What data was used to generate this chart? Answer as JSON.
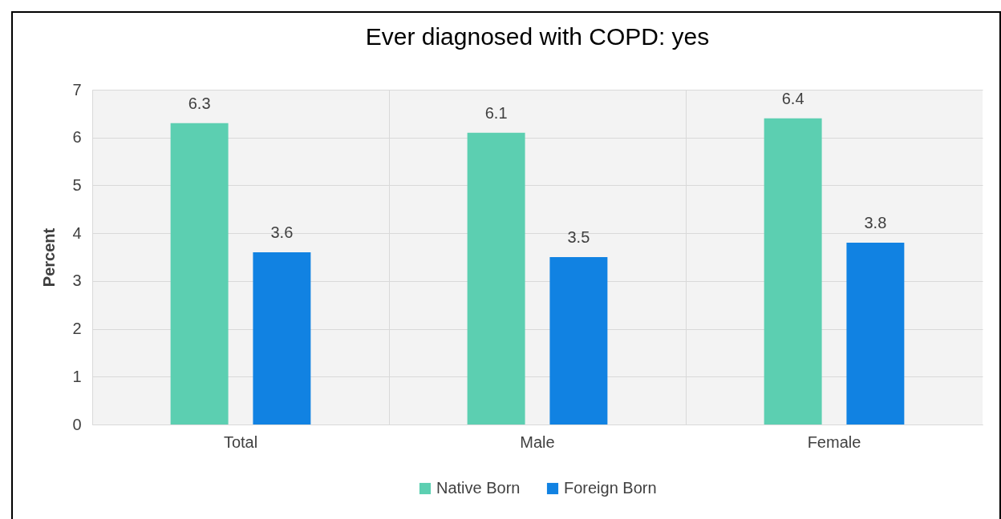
{
  "chart_data": {
    "type": "bar",
    "title": "Ever diagnosed with COPD: yes",
    "ylabel": "Percent",
    "categories": [
      "Total",
      "Male",
      "Female"
    ],
    "series": [
      {
        "name": "Native Born",
        "color": "#5ccfb1",
        "values": [
          6.3,
          6.1,
          6.4
        ]
      },
      {
        "name": "Foreign Born",
        "color": "#1182e2",
        "values": [
          3.6,
          3.5,
          3.8
        ]
      }
    ],
    "ylim": [
      0,
      7
    ],
    "yticks": [
      0,
      1,
      2,
      3,
      4,
      5,
      6,
      7
    ],
    "grid": true,
    "legend": "bottom",
    "data_labels": true
  }
}
